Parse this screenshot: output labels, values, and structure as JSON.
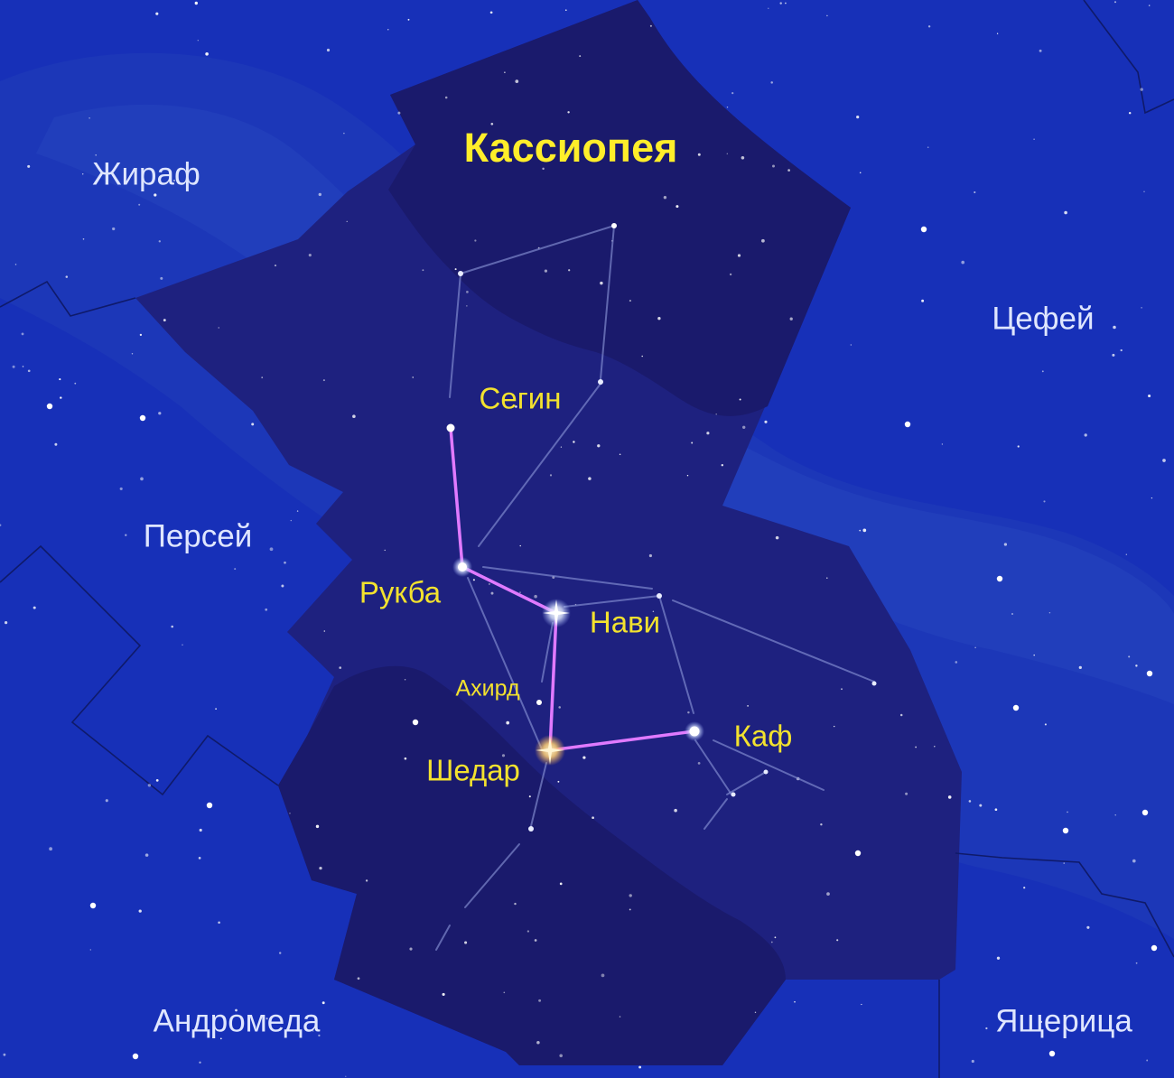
{
  "constellation": {
    "title": "Кассиопея"
  },
  "neighbors": {
    "giraffe": "Жираф",
    "cepheus": "Цефей",
    "perseus": "Персей",
    "andromeda": "Андромеда",
    "lacerta": "Ящерица"
  },
  "stars": {
    "segin": "Сегин",
    "ruchbah": "Рукба",
    "navi": "Нави",
    "achird": "Ахирд",
    "schedar": "Шедар",
    "caph": "Каф"
  },
  "colors": {
    "sky": "#1730b8",
    "constellation_area": "#1c1f79",
    "milky_way": "#23399e",
    "asterism_line": "#e070ff",
    "figure_line": "#8f9ad8",
    "label_star": "#f3e22e",
    "label_title": "#ffee2a",
    "label_neighbor": "#dfe6ff"
  }
}
